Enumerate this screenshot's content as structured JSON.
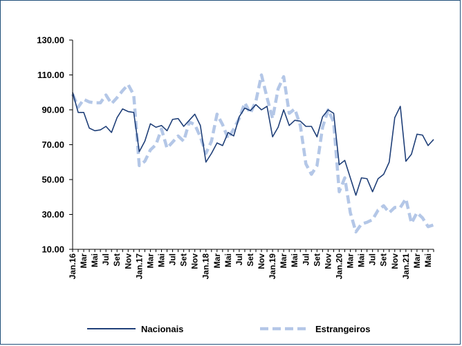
{
  "chart_data": {
    "type": "line",
    "title": "",
    "xlabel": "",
    "ylabel": "",
    "ylim": [
      10,
      130
    ],
    "yticks": [
      "10.00",
      "30.00",
      "50.00",
      "70.00",
      "90.00",
      "110.00",
      "130.00"
    ],
    "ytick_values": [
      10,
      30,
      50,
      70,
      90,
      110,
      130
    ],
    "legend_position": "bottom",
    "grid": false,
    "colors": {
      "Nacionais": "#1f3f78",
      "Estrangeiros": "#b4c7e7",
      "axis": "#000000",
      "frame": "#1f4e79"
    },
    "x": [
      "Jan.16",
      "Fev.16",
      "Mar.16",
      "Abr.16",
      "Mai.16",
      "Jun.16",
      "Jul.16",
      "Ago.16",
      "Set.16",
      "Out.16",
      "Nov.16",
      "Dez.16",
      "Jan.17",
      "Fev.17",
      "Mar.17",
      "Abr.17",
      "Mai.17",
      "Jun.17",
      "Jul.17",
      "Ago.17",
      "Set.17",
      "Out.17",
      "Nov.17",
      "Dez.17",
      "Jan.18",
      "Fev.18",
      "Mar.18",
      "Abr.18",
      "Mai.18",
      "Jun.18",
      "Jul.18",
      "Ago.18",
      "Set.18",
      "Out.18",
      "Nov.18",
      "Dez.18",
      "Jan.19",
      "Fev.19",
      "Mar.19",
      "Abr.19",
      "Mai.19",
      "Jun.19",
      "Jul.19",
      "Ago.19",
      "Set.19",
      "Out.19",
      "Nov.19",
      "Dez.19",
      "Jan.20",
      "Fev.20",
      "Mar.20",
      "Abr.20",
      "Mai.20",
      "Jun.20",
      "Jul.20",
      "Ago.20",
      "Set.20",
      "Out.20",
      "Nov.20",
      "Dez.20",
      "Jan.21",
      "Fev.21",
      "Mar.21",
      "Abr.21",
      "Mai.21",
      "Jun.21"
    ],
    "x_tick_labels": [
      "Jan.16",
      "Mar",
      "Mai",
      "Jul",
      "Set",
      "Nov",
      "Jan.17",
      "Mar",
      "Mai",
      "Jul",
      "Set",
      "Nov",
      "Jan.18",
      "Mar",
      "Mai",
      "Jul",
      "Set",
      "Nov",
      "Jan.19",
      "Mar",
      "Mai",
      "Jul",
      "Set",
      "Nov",
      "Jan.20",
      "Mar",
      "Mai",
      "Jul",
      "Set",
      "Nov",
      "Jan.21",
      "Mar",
      "Mai"
    ],
    "series": [
      {
        "name": "Nacionais",
        "style": "solid",
        "values": [
          100,
          88.5,
          88.5,
          79.5,
          78,
          78.5,
          80.5,
          77,
          85.5,
          90.5,
          89,
          88.5,
          66,
          72,
          82,
          80,
          81,
          78,
          84.5,
          85,
          80.5,
          84,
          87.5,
          81,
          60,
          65,
          71,
          69.5,
          77,
          75,
          86,
          91,
          89.5,
          93,
          90,
          92,
          74.5,
          80,
          90,
          81,
          84,
          83.5,
          80.5,
          80.5,
          74.5,
          86,
          90,
          88,
          58.5,
          61,
          51,
          41,
          51,
          50.5,
          43,
          50.5,
          53,
          60,
          85.5,
          92,
          60.5,
          64.5,
          76,
          75.5,
          69.5,
          73
        ]
      },
      {
        "name": "Estrangeiros",
        "style": "dashed",
        "values": [
          99,
          91.5,
          96,
          94.5,
          94,
          94,
          98.5,
          93.5,
          97,
          101,
          104.5,
          98.5,
          58,
          60.5,
          67,
          70,
          79,
          68,
          71.5,
          75,
          72,
          83,
          81.5,
          74.5,
          65,
          72,
          87.5,
          81.5,
          73.5,
          79,
          85,
          94,
          88,
          95,
          110,
          97,
          85,
          102,
          109,
          88,
          90.5,
          81,
          59,
          53,
          58,
          80,
          90,
          83,
          43,
          51,
          31,
          20,
          24.5,
          25.5,
          27,
          32.5,
          35,
          31,
          34,
          34,
          39,
          25,
          31,
          28,
          23,
          24
        ]
      }
    ]
  }
}
